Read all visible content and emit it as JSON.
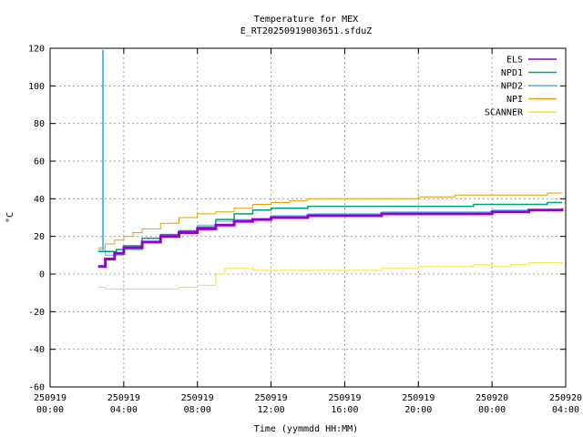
{
  "chart_data": {
    "type": "line",
    "title": "Temperature for MEX",
    "subtitle": "E_RT20250919003651.sfduZ",
    "xlabel": "Time (yymmdd HH:MM)",
    "ylabel": "°C",
    "ylim": [
      -60,
      120
    ],
    "yticks": [
      -60,
      -40,
      -20,
      0,
      20,
      40,
      60,
      80,
      100,
      120
    ],
    "xlim": [
      0,
      28
    ],
    "xticks": [
      {
        "h": 0,
        "date": "250919",
        "time": "00:00"
      },
      {
        "h": 4,
        "date": "250919",
        "time": "04:00"
      },
      {
        "h": 8,
        "date": "250919",
        "time": "08:00"
      },
      {
        "h": 12,
        "date": "250919",
        "time": "12:00"
      },
      {
        "h": 16,
        "date": "250919",
        "time": "16:00"
      },
      {
        "h": 20,
        "date": "250919",
        "time": "20:00"
      },
      {
        "h": 24,
        "date": "250920",
        "time": "00:00"
      },
      {
        "h": 28,
        "date": "250920",
        "time": "04:00"
      }
    ],
    "grid": true,
    "legend_position": "top-right",
    "series": [
      {
        "name": "ELS",
        "color": "#9400d3",
        "width": 3,
        "points": [
          [
            2.6,
            4
          ],
          [
            3.0,
            8
          ],
          [
            3.5,
            11
          ],
          [
            4.0,
            14
          ],
          [
            5.0,
            17
          ],
          [
            6.0,
            20
          ],
          [
            7.0,
            22
          ],
          [
            8.0,
            24
          ],
          [
            9.0,
            26
          ],
          [
            10,
            28
          ],
          [
            11,
            29
          ],
          [
            12,
            30
          ],
          [
            14,
            31
          ],
          [
            16,
            31
          ],
          [
            18,
            32
          ],
          [
            20,
            32
          ],
          [
            22,
            32
          ],
          [
            24,
            33
          ],
          [
            26,
            34
          ],
          [
            27.8,
            35
          ]
        ]
      },
      {
        "name": "NPD1",
        "color": "#009e73",
        "width": 1.5,
        "points": [
          [
            2.6,
            12
          ],
          [
            3.0,
            12
          ],
          [
            3.3,
            12
          ],
          [
            3.6,
            13
          ],
          [
            4.0,
            15
          ],
          [
            5.0,
            19
          ],
          [
            6.0,
            21
          ],
          [
            7.0,
            23
          ],
          [
            8.0,
            25
          ],
          [
            9.0,
            29
          ],
          [
            10,
            32
          ],
          [
            11,
            34
          ],
          [
            12,
            35
          ],
          [
            14,
            36
          ],
          [
            16,
            36
          ],
          [
            18,
            36
          ],
          [
            20,
            36
          ],
          [
            22,
            36
          ],
          [
            23,
            37
          ],
          [
            25,
            37
          ],
          [
            27,
            38
          ],
          [
            27.8,
            38
          ]
        ]
      },
      {
        "name": "NPD2",
        "color": "#56b4e9",
        "width": 1,
        "points": [
          [
            2.6,
            13
          ],
          [
            2.8,
            13
          ],
          [
            2.85,
            119
          ],
          [
            2.9,
            13
          ],
          [
            3.0,
            10
          ],
          [
            4.0,
            13
          ],
          [
            5.0,
            17
          ],
          [
            6.0,
            20
          ],
          [
            7.0,
            23
          ],
          [
            8.0,
            26
          ],
          [
            9.0,
            28
          ],
          [
            10,
            29
          ],
          [
            12,
            31
          ],
          [
            14,
            32
          ],
          [
            16,
            32
          ],
          [
            18,
            33
          ],
          [
            20,
            33
          ],
          [
            22,
            33
          ],
          [
            24,
            34
          ],
          [
            26,
            34
          ],
          [
            27.8,
            34
          ]
        ]
      },
      {
        "name": "NPI",
        "color": "#e69f00",
        "width": 1,
        "points": [
          [
            2.6,
            14
          ],
          [
            3.0,
            16
          ],
          [
            3.5,
            18
          ],
          [
            4.0,
            20
          ],
          [
            4.5,
            22
          ],
          [
            5.0,
            24
          ],
          [
            6.0,
            27
          ],
          [
            7.0,
            30
          ],
          [
            8.0,
            32
          ],
          [
            9.0,
            33
          ],
          [
            10,
            35
          ],
          [
            11,
            37
          ],
          [
            12,
            38
          ],
          [
            13,
            39
          ],
          [
            14,
            40
          ],
          [
            15,
            40
          ],
          [
            16,
            40
          ],
          [
            18,
            40
          ],
          [
            20,
            41
          ],
          [
            22,
            42
          ],
          [
            24,
            42
          ],
          [
            26,
            42
          ],
          [
            27,
            43
          ],
          [
            27.8,
            43
          ]
        ]
      },
      {
        "name": "SCANNER",
        "color": "#f0e442",
        "width": 1,
        "points": [
          [
            2.6,
            -7
          ],
          [
            3.0,
            -8
          ],
          [
            4.0,
            -8
          ],
          [
            5.0,
            -8
          ],
          [
            6.0,
            -8
          ],
          [
            7.0,
            -7
          ],
          [
            8.0,
            -6
          ],
          [
            9.0,
            0
          ],
          [
            9.5,
            3
          ],
          [
            10,
            3
          ],
          [
            11,
            2
          ],
          [
            12,
            2
          ],
          [
            14,
            2
          ],
          [
            16,
            2
          ],
          [
            18,
            3
          ],
          [
            20,
            4
          ],
          [
            22,
            4
          ],
          [
            23,
            5
          ],
          [
            24,
            4
          ],
          [
            25,
            5
          ],
          [
            26,
            6
          ],
          [
            27,
            6
          ],
          [
            27.8,
            5
          ]
        ]
      }
    ]
  }
}
